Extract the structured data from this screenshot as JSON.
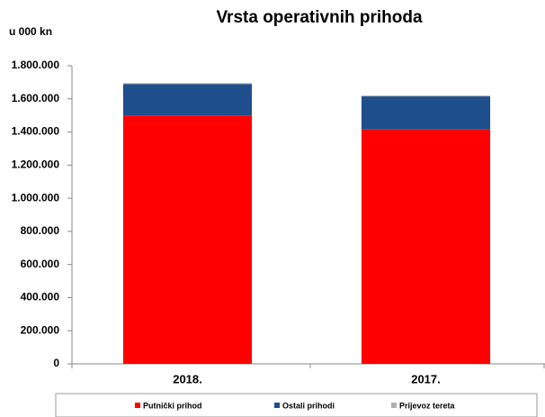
{
  "chart_data": {
    "type": "stacked_bar",
    "title": "Vrsta operativnih prihoda",
    "y_axis_label": "u 000 kn",
    "categories": [
      "2018.",
      "2017."
    ],
    "series": [
      {
        "name": "Putnički prihod",
        "color": "#ff0000",
        "values": [
          1500000,
          1415000
        ]
      },
      {
        "name": "Ostali prihodi",
        "color": "#1f4e8c",
        "values": [
          190000,
          200000
        ]
      },
      {
        "name": "Prijevoz tereta",
        "color": "#b0b0b0",
        "values": [
          5000,
          5000
        ]
      }
    ],
    "ylim": [
      0,
      1800000
    ],
    "yticks": [
      0,
      {
        "value": 200000,
        "label": "200.000"
      },
      {
        "value": 400000,
        "label": "400.000"
      },
      {
        "value": 600000,
        "label": "600.000"
      },
      {
        "value": 800000,
        "label": "800.000"
      },
      {
        "value": 1000000,
        "label": "1.000.000"
      },
      {
        "value": 1200000,
        "label": "1.200.000"
      },
      {
        "value": 1400000,
        "label": "1.400.000"
      },
      {
        "value": 1600000,
        "label": "1.600.000"
      },
      {
        "value": 1800000,
        "label": "1.800.000"
      }
    ],
    "legend": "bottom"
  }
}
